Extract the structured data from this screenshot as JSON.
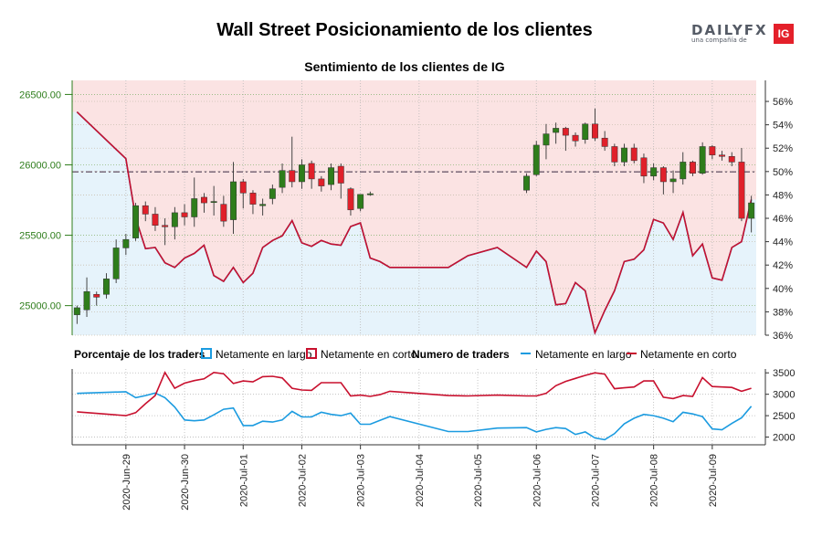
{
  "header": {
    "title": "Wall Street Posicionamiento de los clientes",
    "subtitle": "Sentimiento de los clientes de IG",
    "logo_text": "DAILYFX",
    "logo_sub": "una compañía de",
    "logo_ig": "IG"
  },
  "legend": {
    "pct_title": "Porcentaje de los traders",
    "pct_long": "Netamente en largo",
    "pct_short": "Netamente en corto",
    "num_title": "Numero de traders",
    "num_long": "Netamente en largo",
    "num_short": "Netamente en corto"
  },
  "colors": {
    "long": "#1b9be0",
    "short": "#c8102e",
    "bull": "#2e7d1b",
    "bear": "#e0202a",
    "long_fill": "#e6f3fb",
    "short_fill": "#fbe3e3",
    "price_axis": "#2e7d1b"
  },
  "chart_data": [
    {
      "type": "candlestick",
      "name": "price",
      "y_ticks": [
        {
          "value": 25000,
          "label": "25000.00"
        },
        {
          "value": 25500,
          "label": "25500.00"
        },
        {
          "value": 26000,
          "label": "26000.00"
        },
        {
          "value": 26500,
          "label": "26500.00"
        }
      ],
      "ylim": [
        24790,
        26600
      ],
      "reference_line": 25950,
      "candles": [
        [
          0,
          24935,
          24985,
          24870,
          25000
        ],
        [
          1,
          24970,
          25100,
          24920,
          25200
        ],
        [
          2,
          25080,
          25060,
          25000,
          25100
        ],
        [
          3,
          25080,
          25190,
          25050,
          25230
        ],
        [
          4,
          25190,
          25410,
          25160,
          25470
        ],
        [
          5,
          25410,
          25470,
          25360,
          25510
        ],
        [
          6,
          25480,
          25710,
          25460,
          25730
        ],
        [
          7,
          25710,
          25650,
          25600,
          25740
        ],
        [
          8,
          25650,
          25570,
          25530,
          25700
        ],
        [
          9,
          25570,
          25560,
          25430,
          25620
        ],
        [
          10,
          25560,
          25660,
          25470,
          25700
        ],
        [
          11,
          25660,
          25630,
          25570,
          25720
        ],
        [
          12,
          25630,
          25760,
          25560,
          25910
        ],
        [
          13,
          25770,
          25730,
          25660,
          25800
        ],
        [
          14,
          25740,
          25740,
          25640,
          25850
        ],
        [
          15,
          25720,
          25600,
          25560,
          25780
        ],
        [
          16,
          25610,
          25880,
          25510,
          26020
        ],
        [
          17,
          25880,
          25800,
          25690,
          25900
        ],
        [
          18,
          25800,
          25720,
          25650,
          25820
        ],
        [
          19,
          25710,
          25720,
          25640,
          25760
        ],
        [
          20,
          25760,
          25830,
          25720,
          25860
        ],
        [
          21,
          25840,
          25960,
          25800,
          26010
        ],
        [
          22,
          25960,
          25880,
          25840,
          26200
        ],
        [
          23,
          25880,
          26000,
          25830,
          26040
        ],
        [
          24,
          26010,
          25900,
          25830,
          26030
        ],
        [
          25,
          25900,
          25850,
          25810,
          25920
        ],
        [
          26,
          25860,
          25980,
          25820,
          26010
        ],
        [
          27,
          25990,
          25870,
          25760,
          26010
        ],
        [
          28,
          25830,
          25680,
          25640,
          25840
        ],
        [
          29,
          25690,
          25790,
          25670,
          25790
        ],
        [
          30,
          25790,
          25795,
          25780,
          25810
        ],
        [
          46,
          25820,
          25920,
          25800,
          25940
        ],
        [
          47,
          25930,
          26140,
          25920,
          26170
        ],
        [
          48,
          26140,
          26220,
          26040,
          26290
        ],
        [
          49,
          26230,
          26260,
          26150,
          26300
        ],
        [
          50,
          26260,
          26210,
          26100,
          26270
        ],
        [
          51,
          26210,
          26170,
          26130,
          26230
        ],
        [
          52,
          26180,
          26290,
          26150,
          26300
        ],
        [
          53,
          26290,
          26190,
          26170,
          26400
        ],
        [
          54,
          26190,
          26130,
          26100,
          26240
        ],
        [
          55,
          26130,
          26020,
          25990,
          26150
        ],
        [
          56,
          26020,
          26120,
          25990,
          26150
        ],
        [
          57,
          26120,
          26030,
          26010,
          26150
        ],
        [
          58,
          26050,
          25920,
          25870,
          26080
        ],
        [
          59,
          25920,
          25980,
          25890,
          26010
        ],
        [
          60,
          25980,
          25880,
          25790,
          25990
        ],
        [
          61,
          25880,
          25900,
          25800,
          25960
        ],
        [
          62,
          25900,
          26020,
          25860,
          26090
        ],
        [
          63,
          26020,
          25940,
          25920,
          26030
        ],
        [
          64,
          25940,
          26130,
          25930,
          26160
        ],
        [
          65,
          26130,
          26070,
          26040,
          26140
        ],
        [
          66,
          26070,
          26060,
          26030,
          26100
        ],
        [
          67,
          26060,
          26020,
          25990,
          26090
        ],
        [
          68,
          26020,
          25620,
          25600,
          26120
        ],
        [
          69,
          25620,
          25730,
          25520,
          25780
        ]
      ],
      "x_count": 70
    },
    {
      "type": "area",
      "name": "percentage",
      "y_ticks": [
        "36%",
        "38%",
        "40%",
        "42%",
        "44%",
        "46%",
        "48%",
        "50%",
        "52%",
        "54%",
        "56%"
      ],
      "ylim": [
        36,
        57.8
      ],
      "series": [
        {
          "name": "Netamente en corto",
          "x": [
            0,
            5,
            6,
            7,
            8,
            9,
            10,
            11,
            12,
            13,
            14,
            15,
            16,
            17,
            18,
            19,
            20,
            21,
            22,
            23,
            24,
            25,
            26,
            27,
            28,
            29,
            30,
            31,
            32,
            38,
            40,
            43,
            46,
            47,
            48,
            49,
            50,
            51,
            52,
            53,
            54,
            55,
            56,
            57,
            58,
            59,
            60,
            61,
            62,
            63,
            64,
            65,
            66,
            67,
            68,
            69
          ],
          "values": [
            55.1,
            51.1,
            46.0,
            43.4,
            43.5,
            42.2,
            41.8,
            42.6,
            43.0,
            43.7,
            41.1,
            40.6,
            41.8,
            40.5,
            41.3,
            43.5,
            44.1,
            44.5,
            45.8,
            43.9,
            43.6,
            44.1,
            43.8,
            43.7,
            45.3,
            45.6,
            42.6,
            42.3,
            41.8,
            41.8,
            42.8,
            43.5,
            41.8,
            43.2,
            42.3,
            38.6,
            38.7,
            40.5,
            39.8,
            36.2,
            38.1,
            39.8,
            42.3,
            42.5,
            43.3,
            45.9,
            45.6,
            44.2,
            46.5,
            42.8,
            43.8,
            40.9,
            40.7,
            43.5,
            44.0,
            47.6
          ]
        }
      ]
    },
    {
      "type": "line",
      "name": "traders",
      "y_ticks": [
        {
          "value": 2000,
          "label": "2000"
        },
        {
          "value": 2500,
          "label": "2500"
        },
        {
          "value": 3000,
          "label": "3000"
        },
        {
          "value": 3500,
          "label": "3500"
        }
      ],
      "ylim": [
        1820,
        3590
      ],
      "series": [
        {
          "name": "Netamente en largo",
          "x": [
            0,
            5,
            6,
            7,
            8,
            9,
            10,
            11,
            12,
            13,
            14,
            15,
            16,
            17,
            18,
            19,
            20,
            21,
            22,
            23,
            24,
            25,
            26,
            27,
            28,
            29,
            30,
            31,
            32,
            38,
            40,
            43,
            46,
            47,
            48,
            49,
            50,
            51,
            52,
            53,
            54,
            55,
            56,
            57,
            58,
            59,
            60,
            61,
            62,
            63,
            64,
            65,
            66,
            67,
            68,
            69
          ],
          "values": [
            3020,
            3060,
            2920,
            2970,
            3030,
            2920,
            2700,
            2400,
            2380,
            2400,
            2520,
            2650,
            2680,
            2270,
            2270,
            2370,
            2350,
            2400,
            2600,
            2470,
            2470,
            2580,
            2530,
            2500,
            2560,
            2300,
            2300,
            2390,
            2480,
            2130,
            2130,
            2210,
            2220,
            2120,
            2180,
            2220,
            2200,
            2060,
            2120,
            1980,
            1940,
            2080,
            2310,
            2440,
            2530,
            2500,
            2440,
            2360,
            2580,
            2540,
            2480,
            2190,
            2170,
            2320,
            2450,
            2720
          ]
        },
        {
          "name": "Netamente en corto",
          "x": [
            0,
            5,
            6,
            7,
            8,
            9,
            10,
            11,
            12,
            13,
            14,
            15,
            16,
            17,
            18,
            19,
            20,
            21,
            22,
            23,
            24,
            25,
            26,
            27,
            28,
            29,
            30,
            31,
            32,
            38,
            40,
            43,
            46,
            47,
            48,
            49,
            50,
            51,
            52,
            53,
            54,
            55,
            56,
            57,
            58,
            59,
            60,
            61,
            62,
            63,
            64,
            65,
            66,
            67,
            68,
            69
          ],
          "values": [
            2590,
            2500,
            2570,
            2780,
            2970,
            3510,
            3140,
            3260,
            3320,
            3360,
            3510,
            3480,
            3250,
            3310,
            3290,
            3410,
            3420,
            3380,
            3140,
            3100,
            3090,
            3270,
            3270,
            3270,
            2960,
            2980,
            2950,
            2990,
            3070,
            2970,
            2960,
            2980,
            2960,
            2960,
            3020,
            3200,
            3300,
            3370,
            3440,
            3500,
            3470,
            3130,
            3150,
            3170,
            3310,
            3310,
            2930,
            2900,
            2970,
            2950,
            3390,
            3180,
            3170,
            3160,
            3070,
            3140
          ]
        }
      ]
    }
  ],
  "x_axis": {
    "labels": [
      {
        "idx": 5,
        "label": "2020-Jun-29"
      },
      {
        "idx": 11,
        "label": "2020-Jun-30"
      },
      {
        "idx": 17,
        "label": "2020-Jul-01"
      },
      {
        "idx": 23,
        "label": "2020-Jul-02"
      },
      {
        "idx": 29,
        "label": "2020-Jul-03"
      },
      {
        "idx": 35,
        "label": "2020-Jul-04"
      },
      {
        "idx": 41,
        "label": "2020-Jul-05"
      },
      {
        "idx": 47,
        "label": "2020-Jul-06"
      },
      {
        "idx": 53,
        "label": "2020-Jul-07"
      },
      {
        "idx": 59,
        "label": "2020-Jul-08"
      },
      {
        "idx": 65,
        "label": "2020-Jul-09"
      }
    ]
  }
}
